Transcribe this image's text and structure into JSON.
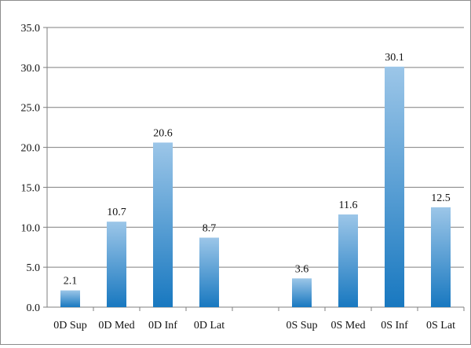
{
  "chart_data": {
    "type": "bar",
    "title": "",
    "xlabel": "",
    "ylabel": "",
    "ylim": [
      0,
      35
    ],
    "yticks": [
      "0.0",
      "5.0",
      "10.0",
      "15.0",
      "20.0",
      "25.0",
      "30.0",
      "35.0"
    ],
    "grid": true,
    "legend": "none",
    "categories": [
      "0D Sup",
      "0D Med",
      "0D Inf",
      "0D Lat",
      "",
      "0S Sup",
      "0S Med",
      "0S Inf",
      "0S Lat"
    ],
    "values": [
      2.1,
      10.7,
      20.6,
      8.7,
      null,
      3.6,
      11.6,
      30.1,
      12.5
    ],
    "data_labels": [
      "2.1",
      "10.7",
      "20.6",
      "8.7",
      "",
      "3.6",
      "11.6",
      "30.1",
      "12.5"
    ],
    "colors": {
      "bar_top": "#9cc6e8",
      "bar_bottom": "#1878c0",
      "grid": "#7f7f7f",
      "axis": "#7f7f7f"
    }
  }
}
